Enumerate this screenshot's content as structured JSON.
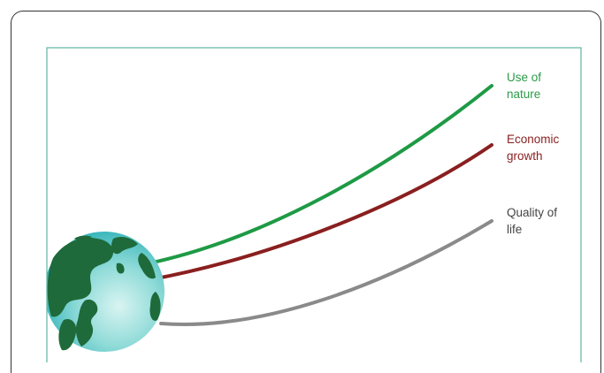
{
  "diagram": {
    "labels": {
      "use_of_nature": [
        "Use of",
        "nature"
      ],
      "economic_growth": [
        "Economic",
        "growth"
      ],
      "quality_of_life": [
        "Quality of",
        "life"
      ]
    },
    "colors": {
      "frame": "#5fb4a0",
      "use_of_nature": "#1e9a45",
      "economic_growth": "#8a1f1f",
      "quality_of_life": "#8a8a8a",
      "label_use_of_nature": "#2a9a48",
      "label_economic_growth": "#8a1f1f",
      "label_quality_of_life": "#444444",
      "globe_ocean_light": "#d9f4f2",
      "globe_ocean_dark": "#1aa9b0",
      "globe_land": "#1e6a3a"
    },
    "icons": [
      "globe-icon"
    ]
  }
}
